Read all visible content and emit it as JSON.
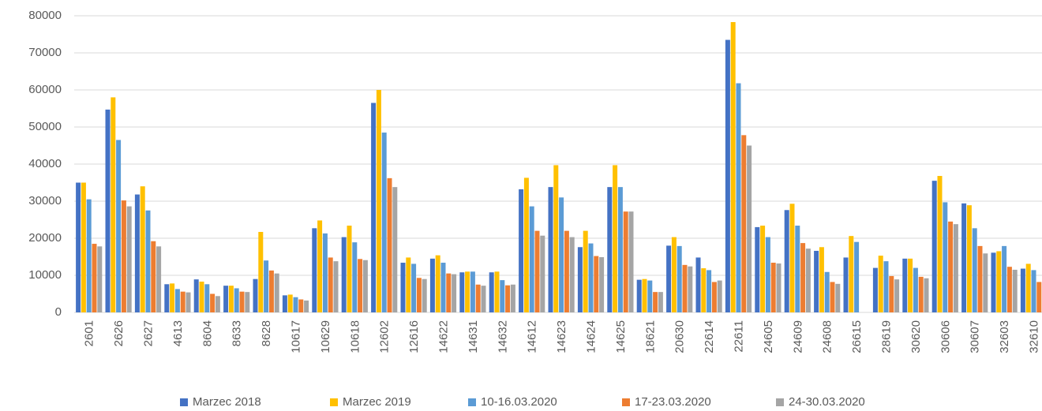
{
  "chart_data": {
    "type": "bar",
    "categories": [
      "2601",
      "2626",
      "2627",
      "4613",
      "8604",
      "8633",
      "8628",
      "10617",
      "10629",
      "10618",
      "12602",
      "12616",
      "14622",
      "14631",
      "14632",
      "14612",
      "14623",
      "14624",
      "14625",
      "18621",
      "20630",
      "22614",
      "22611",
      "24605",
      "24609",
      "24608",
      "26615",
      "28619",
      "30620",
      "30606",
      "30607",
      "32603",
      "32610"
    ],
    "series": [
      {
        "name": "Marzec 2018",
        "color": "#4472c4",
        "values": [
          35000,
          54700,
          31800,
          7600,
          8900,
          7200,
          9000,
          4600,
          22700,
          20300,
          56500,
          13400,
          14500,
          10800,
          10800,
          33200,
          33800,
          17600,
          33800,
          8800,
          18000,
          14800,
          73500,
          23000,
          27600,
          16600,
          14800,
          12000,
          14500,
          35500,
          29400,
          16100,
          11800
        ]
      },
      {
        "name": "Marzec 2019",
        "color": "#ffc000",
        "values": [
          35000,
          58000,
          34000,
          7800,
          8300,
          7200,
          21700,
          4800,
          24800,
          23400,
          60000,
          14800,
          15400,
          11000,
          11000,
          36300,
          39700,
          22000,
          39700,
          9000,
          20300,
          11900,
          78300,
          23400,
          29300,
          17600,
          20600,
          15300,
          14500,
          36800,
          28900,
          16500,
          13100
        ]
      },
      {
        "name": "10-16.03.2020",
        "color": "#5b9bd5",
        "values": [
          30500,
          46500,
          27500,
          6300,
          7600,
          6500,
          14000,
          4100,
          21300,
          18900,
          48500,
          13100,
          13400,
          11000,
          8700,
          28600,
          31000,
          18600,
          33800,
          8600,
          17900,
          11400,
          61800,
          20300,
          23400,
          10900,
          19000,
          13800,
          12000,
          29700,
          22700,
          17900,
          11400
        ]
      },
      {
        "name": "17-23.03.2020",
        "color": "#ed7d31",
        "values": [
          18500,
          30200,
          19200,
          5600,
          5000,
          5600,
          11300,
          3500,
          14800,
          14400,
          36200,
          9300,
          10500,
          7500,
          7300,
          22000,
          22000,
          15200,
          27200,
          5500,
          12800,
          8200,
          47800,
          13400,
          18700,
          8200,
          null,
          9800,
          9600,
          24500,
          17900,
          12300,
          8200
        ]
      },
      {
        "name": "24-30.03.2020",
        "color": "#a5a5a5",
        "values": [
          17800,
          28600,
          17800,
          5400,
          4400,
          5500,
          10500,
          3200,
          13800,
          14100,
          33800,
          9000,
          10300,
          7200,
          7500,
          20700,
          20300,
          14900,
          27200,
          5500,
          12400,
          8600,
          45000,
          13200,
          17200,
          7700,
          null,
          8900,
          9200,
          23800,
          15900,
          11500,
          7800
        ]
      }
    ],
    "ylim": [
      0,
      80000
    ],
    "yticks": [
      0,
      10000,
      20000,
      30000,
      40000,
      50000,
      60000,
      70000,
      80000
    ],
    "grid": true,
    "legend": "bottom"
  }
}
